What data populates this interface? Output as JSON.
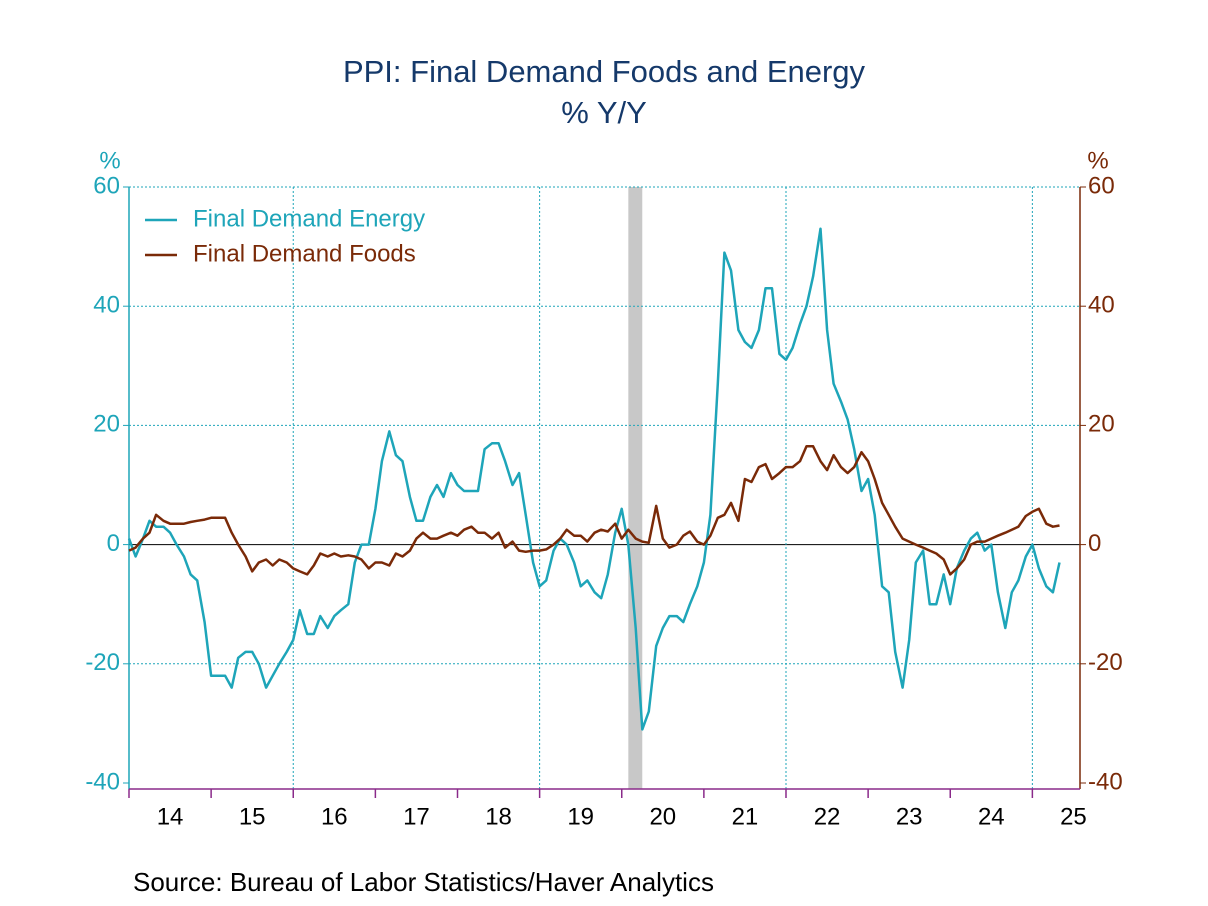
{
  "chart_data": {
    "type": "line",
    "title": "PPI: Final Demand Foods and Energy",
    "subtitle": "% Y/Y",
    "ylabel": "%",
    "y2label": "%",
    "source": "Source:  Bureau of Labor Statistics/Haver Analytics",
    "legend": "top-left",
    "xlim": [
      2014,
      2025.58
    ],
    "xticks": [
      {
        "value": 2014.5,
        "label": "14"
      },
      {
        "value": 2015.5,
        "label": "15"
      },
      {
        "value": 2016.5,
        "label": "16"
      },
      {
        "value": 2017.5,
        "label": "17"
      },
      {
        "value": 2018.5,
        "label": "18"
      },
      {
        "value": 2019.5,
        "label": "19"
      },
      {
        "value": 2020.5,
        "label": "20"
      },
      {
        "value": 2021.5,
        "label": "21"
      },
      {
        "value": 2022.5,
        "label": "22"
      },
      {
        "value": 2023.5,
        "label": "23"
      },
      {
        "value": 2024.5,
        "label": "24"
      },
      {
        "value": 2025.5,
        "label": "25"
      }
    ],
    "xgrid": [
      2016,
      2019,
      2022,
      2025
    ],
    "recessions": [
      [
        2020.08,
        2020.25
      ]
    ],
    "ylim": [
      -40,
      60
    ],
    "yticks": [
      -40,
      -20,
      0,
      20,
      40,
      60
    ],
    "y2lim": [
      -40,
      60
    ],
    "y2ticks": [
      -40,
      -20,
      0,
      20,
      40,
      60
    ],
    "grid": true,
    "x": [
      2014,
      2014.08,
      2014.17,
      2014.25,
      2014.33,
      2014.42,
      2014.5,
      2014.58,
      2014.67,
      2014.75,
      2014.83,
      2014.92,
      2015,
      2015.08,
      2015.17,
      2015.25,
      2015.33,
      2015.42,
      2015.5,
      2015.58,
      2015.67,
      2015.75,
      2015.83,
      2015.92,
      2016,
      2016.08,
      2016.17,
      2016.25,
      2016.33,
      2016.42,
      2016.5,
      2016.58,
      2016.67,
      2016.75,
      2016.83,
      2016.92,
      2017,
      2017.08,
      2017.17,
      2017.25,
      2017.33,
      2017.42,
      2017.5,
      2017.58,
      2017.67,
      2017.75,
      2017.83,
      2017.92,
      2018,
      2018.08,
      2018.17,
      2018.25,
      2018.33,
      2018.42,
      2018.5,
      2018.58,
      2018.67,
      2018.75,
      2018.83,
      2018.92,
      2019,
      2019.08,
      2019.17,
      2019.25,
      2019.33,
      2019.42,
      2019.5,
      2019.58,
      2019.67,
      2019.75,
      2019.83,
      2019.92,
      2020,
      2020.08,
      2020.17,
      2020.25,
      2020.33,
      2020.42,
      2020.5,
      2020.58,
      2020.67,
      2020.75,
      2020.83,
      2020.92,
      2021,
      2021.08,
      2021.17,
      2021.25,
      2021.33,
      2021.42,
      2021.5,
      2021.58,
      2021.67,
      2021.75,
      2021.83,
      2021.92,
      2022,
      2022.08,
      2022.17,
      2022.25,
      2022.33,
      2022.42,
      2022.5,
      2022.58,
      2022.67,
      2022.75,
      2022.83,
      2022.92,
      2023,
      2023.08,
      2023.17,
      2023.25,
      2023.33,
      2023.42,
      2023.5,
      2023.58,
      2023.67,
      2023.75,
      2023.83,
      2023.92,
      2024,
      2024.08,
      2024.17,
      2024.25,
      2024.33,
      2024.42,
      2024.5,
      2024.58,
      2024.67,
      2024.75,
      2024.83,
      2024.92,
      2025,
      2025.08,
      2025.17,
      2025.25,
      2025.33
    ],
    "series": [
      {
        "name": "Final Demand Energy",
        "color": "#1ea5b9",
        "axis": "y",
        "values": [
          1,
          -2,
          1,
          4,
          3,
          3,
          2,
          0,
          -2,
          -5,
          -6,
          -13,
          -22,
          -22,
          -22,
          -24,
          -19,
          -18,
          -18,
          -20,
          -24,
          -22,
          -20,
          -18,
          -16,
          -11,
          -15,
          -15,
          -12,
          -14,
          -12,
          -11,
          -10,
          -3,
          0,
          0,
          6,
          14,
          19,
          15,
          14,
          8,
          4,
          4,
          8,
          10,
          8,
          12,
          10,
          9,
          9,
          9,
          16,
          17,
          17,
          14,
          10,
          12,
          5,
          -3,
          -7,
          -6,
          -1,
          1,
          0,
          -3,
          -7,
          -6,
          -8,
          -9,
          -5,
          2,
          6,
          0,
          -14,
          -31,
          -28,
          -17,
          -14,
          -12,
          -12,
          -13,
          -10,
          -7,
          -3,
          5,
          27,
          49,
          46,
          36,
          34,
          33,
          36,
          43,
          43,
          32,
          31,
          33,
          37,
          40,
          45,
          53,
          36,
          27,
          24,
          21,
          16,
          9,
          11,
          5,
          -7,
          -8,
          -18,
          -24,
          -16,
          -3,
          -1,
          -10,
          -10,
          -5,
          -10,
          -4,
          -1,
          1,
          2,
          -1,
          0,
          -8,
          -14,
          -8,
          -6,
          -2,
          0,
          -4,
          -7,
          -8,
          -3
        ]
      },
      {
        "name": "Final Demand Foods",
        "color": "#7a2a08",
        "axis": "y2",
        "values": [
          -1,
          -0.5,
          1,
          2,
          5,
          4,
          3.5,
          3.5,
          3.5,
          3.8,
          4,
          4.2,
          4.5,
          4.5,
          4.5,
          2,
          0,
          -2,
          -4.5,
          -3,
          -2.5,
          -3.5,
          -2.5,
          -3,
          -4,
          -4.5,
          -5,
          -3.5,
          -1.5,
          -2,
          -1.5,
          -2,
          -1.8,
          -2,
          -2.5,
          -4,
          -3,
          -3,
          -3.5,
          -1.5,
          -2,
          -1,
          1,
          2,
          1,
          1,
          1.5,
          2,
          1.5,
          2.5,
          3,
          2,
          2,
          1,
          2,
          -0.5,
          0.5,
          -1,
          -1.2,
          -1,
          -1,
          -0.8,
          0,
          1,
          2.5,
          1.5,
          1.5,
          0.5,
          2,
          2.5,
          2.2,
          3.5,
          1,
          2.5,
          1,
          0.5,
          0.3,
          6.5,
          1,
          -0.5,
          0,
          1.5,
          2.2,
          0.5,
          0,
          1.5,
          4.5,
          5,
          7,
          4,
          11,
          10.5,
          13,
          13.5,
          11,
          12,
          13,
          13,
          14,
          16.5,
          16.5,
          14,
          12.5,
          15,
          13,
          12,
          13,
          15.5,
          14,
          11,
          7,
          5,
          3,
          1,
          0.5,
          0,
          -0.5,
          -1,
          -1.5,
          -2.5,
          -5,
          -4,
          -2.5,
          0,
          0.5,
          0.5,
          1,
          1.5,
          2,
          2.5,
          3,
          4.8,
          5.5,
          6,
          3.5,
          3,
          3.2
        ]
      }
    ]
  }
}
